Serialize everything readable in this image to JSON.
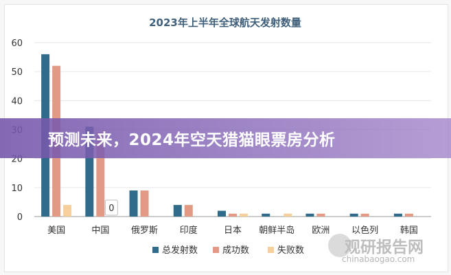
{
  "chart_data": {
    "type": "bar",
    "title": "2023年上半年全球航天发射数量",
    "categories": [
      "美国",
      "中国",
      "俄罗斯",
      "印度",
      "日本",
      "朝鲜半岛",
      "欧洲",
      "以色列",
      "韩国"
    ],
    "series": [
      {
        "name": "总发射数",
        "color": "#2f6b8a",
        "values": [
          56,
          31,
          9,
          4,
          2,
          1,
          1,
          1,
          1
        ]
      },
      {
        "name": "成功数",
        "color": "#e39a84",
        "values": [
          52,
          29,
          9,
          4,
          1,
          0,
          1,
          1,
          1
        ]
      },
      {
        "name": "失败数",
        "color": "#f6cf9b",
        "values": [
          4,
          0,
          0,
          0,
          1,
          1,
          0,
          0,
          0
        ]
      }
    ],
    "yticks": [
      "0",
      "10",
      "20",
      "30",
      "40",
      "50",
      "60"
    ],
    "ylim": [
      0,
      60
    ],
    "data_labels": [
      {
        "category": "中国",
        "series": "失败数",
        "text": "0"
      }
    ],
    "grid": true,
    "legend": "bottom"
  },
  "banner": {
    "text": "预测未来，2024年空天猎猫眼票房分析"
  },
  "watermark": {
    "title": "观研报告网",
    "url": "chinabaogao.com"
  }
}
